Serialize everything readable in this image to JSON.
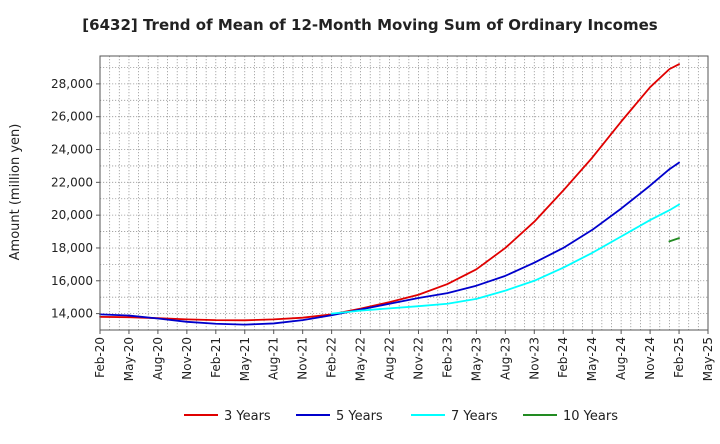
{
  "chart_data": {
    "type": "line",
    "title": "[6432]  Trend of Mean of 12-Month Moving Sum of Ordinary Incomes",
    "xlabel": "",
    "ylabel": "Amount (million yen)",
    "ylim": [
      13000,
      29700
    ],
    "xlim": [
      0,
      63
    ],
    "grid": true,
    "legend_position": "bottom",
    "x_ticks": [
      {
        "index": 0,
        "label": "Feb-20"
      },
      {
        "index": 3,
        "label": "May-20"
      },
      {
        "index": 6,
        "label": "Aug-20"
      },
      {
        "index": 9,
        "label": "Nov-20"
      },
      {
        "index": 12,
        "label": "Feb-21"
      },
      {
        "index": 15,
        "label": "May-21"
      },
      {
        "index": 18,
        "label": "Aug-21"
      },
      {
        "index": 21,
        "label": "Nov-21"
      },
      {
        "index": 24,
        "label": "Feb-22"
      },
      {
        "index": 27,
        "label": "May-22"
      },
      {
        "index": 30,
        "label": "Aug-22"
      },
      {
        "index": 33,
        "label": "Nov-22"
      },
      {
        "index": 36,
        "label": "Feb-23"
      },
      {
        "index": 39,
        "label": "May-23"
      },
      {
        "index": 42,
        "label": "Aug-23"
      },
      {
        "index": 45,
        "label": "Nov-23"
      },
      {
        "index": 48,
        "label": "Feb-24"
      },
      {
        "index": 51,
        "label": "May-24"
      },
      {
        "index": 54,
        "label": "Aug-24"
      },
      {
        "index": 57,
        "label": "Nov-24"
      },
      {
        "index": 60,
        "label": "Feb-25"
      },
      {
        "index": 63,
        "label": "May-25"
      }
    ],
    "y_ticks": [
      14000,
      16000,
      18000,
      20000,
      22000,
      24000,
      26000,
      28000
    ],
    "y_tick_labels": [
      "14,000",
      "16,000",
      "18,000",
      "20,000",
      "22,000",
      "24,000",
      "26,000",
      "28,000"
    ],
    "series": [
      {
        "name": "3 Years",
        "color": "#e00000",
        "points": [
          [
            0,
            13800
          ],
          [
            3,
            13780
          ],
          [
            6,
            13720
          ],
          [
            9,
            13650
          ],
          [
            12,
            13600
          ],
          [
            15,
            13590
          ],
          [
            18,
            13650
          ],
          [
            21,
            13750
          ],
          [
            24,
            13950
          ],
          [
            27,
            14300
          ],
          [
            30,
            14700
          ],
          [
            33,
            15150
          ],
          [
            36,
            15800
          ],
          [
            39,
            16700
          ],
          [
            42,
            18000
          ],
          [
            45,
            19600
          ],
          [
            48,
            21500
          ],
          [
            51,
            23500
          ],
          [
            54,
            25700
          ],
          [
            57,
            27800
          ],
          [
            59,
            28900
          ],
          [
            60,
            29200
          ]
        ]
      },
      {
        "name": "5 Years",
        "color": "#0000cc",
        "points": [
          [
            0,
            13950
          ],
          [
            3,
            13880
          ],
          [
            6,
            13700
          ],
          [
            9,
            13500
          ],
          [
            12,
            13380
          ],
          [
            15,
            13330
          ],
          [
            18,
            13400
          ],
          [
            21,
            13600
          ],
          [
            24,
            13900
          ],
          [
            27,
            14250
          ],
          [
            30,
            14600
          ],
          [
            33,
            14950
          ],
          [
            36,
            15250
          ],
          [
            39,
            15700
          ],
          [
            42,
            16300
          ],
          [
            45,
            17100
          ],
          [
            48,
            18000
          ],
          [
            51,
            19100
          ],
          [
            54,
            20400
          ],
          [
            57,
            21800
          ],
          [
            59,
            22800
          ],
          [
            60,
            23200
          ]
        ]
      },
      {
        "name": "7 Years",
        "color": "#00ffff",
        "points": [
          [
            24,
            14000
          ],
          [
            27,
            14180
          ],
          [
            30,
            14320
          ],
          [
            33,
            14450
          ],
          [
            36,
            14600
          ],
          [
            39,
            14900
          ],
          [
            42,
            15400
          ],
          [
            45,
            16000
          ],
          [
            48,
            16800
          ],
          [
            51,
            17700
          ],
          [
            54,
            18700
          ],
          [
            57,
            19700
          ],
          [
            59,
            20300
          ],
          [
            60,
            20650
          ]
        ]
      },
      {
        "name": "10 Years",
        "color": "#228b22",
        "points": [
          [
            59,
            18400
          ],
          [
            60,
            18600
          ]
        ]
      }
    ]
  }
}
